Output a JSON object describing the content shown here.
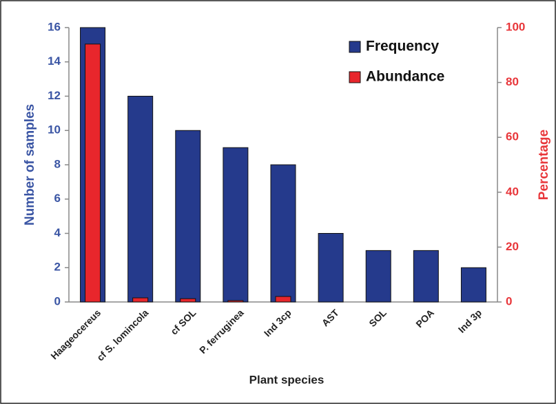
{
  "chart_data": {
    "type": "bar",
    "x_label": "Plant species",
    "y_label": "Number of samples",
    "y2_label": "Percentage",
    "categories": [
      "Haageocereus",
      "cf S. lomincola",
      "cf SOL",
      "P. ferruginea",
      "Ind 3cp",
      "AST",
      "SOL",
      "POA",
      "Ind 3p"
    ],
    "series": [
      {
        "name": "Frequency",
        "color": "#253a8c",
        "values": [
          16,
          12,
          10,
          9,
          8,
          4,
          3,
          3,
          2
        ]
      },
      {
        "name": "Abundance",
        "color": "#e8262c",
        "axis": "y2",
        "values": [
          94,
          1.5,
          1.2,
          0.5,
          2,
          0,
          0,
          0,
          0
        ]
      }
    ],
    "ylim": [
      0,
      16
    ],
    "yticks": [
      0,
      2,
      4,
      6,
      8,
      10,
      12,
      14,
      16
    ],
    "y2lim": [
      0,
      100
    ],
    "y2ticks": [
      0,
      20,
      40,
      60,
      80,
      100
    ],
    "legend": "upper right"
  }
}
